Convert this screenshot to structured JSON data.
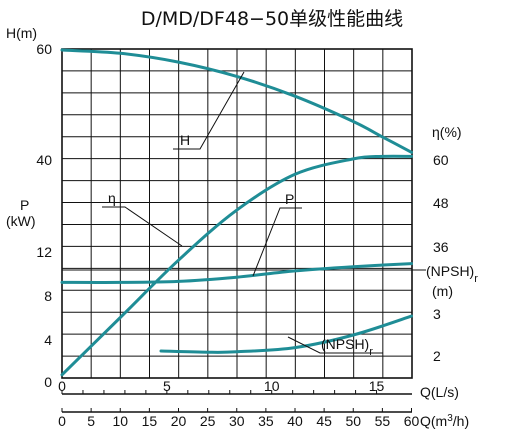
{
  "colors": {
    "curve": "#1f8d96",
    "grid": "#111111",
    "background": "#ffffff"
  },
  "chart_data": {
    "type": "line",
    "title": "D/MD/DF48−50单级性能曲线",
    "x_axis": {
      "label_ls": "Q(L/s)",
      "ticks_ls": [
        "0",
        "5",
        "10",
        "15"
      ],
      "label_m3h_prefix": "Q(m",
      "label_m3h_sup": "3",
      "label_m3h_suffix": "/h)",
      "ticks_m3h": [
        "0",
        "5",
        "10",
        "15",
        "20",
        "25",
        "30",
        "35",
        "40",
        "45",
        "50",
        "55",
        "60"
      ],
      "range_ls": [
        0,
        16.67
      ]
    },
    "left_axes": {
      "head": {
        "label": "H(m)",
        "ticks": [
          "60",
          "40"
        ]
      },
      "power": {
        "label_1": "P",
        "label_2": "(kW)",
        "ticks": [
          "12",
          "8",
          "4",
          "0"
        ]
      }
    },
    "right_axes": {
      "efficiency": {
        "label": "η(%)",
        "ticks": [
          "60",
          "48",
          "36"
        ]
      },
      "npsh": {
        "label_base": "(NPSH)",
        "label_sub": "r",
        "unit": "(m)",
        "ticks": [
          "3",
          "2"
        ]
      }
    },
    "grid": true,
    "curve_labels": {
      "H": "H",
      "eta": "η",
      "P": "P",
      "npsh_base": "(NPSH)",
      "npsh_sub": "r"
    },
    "series": [
      {
        "name": "H",
        "unit": "m",
        "x_m3h": [
          0,
          10,
          20,
          30,
          40,
          50,
          55,
          60
        ],
        "values": [
          60,
          59.4,
          57.8,
          55.2,
          51.6,
          47,
          44.2,
          41.4
        ]
      },
      {
        "name": "η",
        "unit": "%",
        "x_m3h": [
          0,
          10,
          20,
          30,
          40,
          50,
          55,
          60
        ],
        "values": [
          0,
          16,
          32,
          46,
          56,
          60.3,
          61,
          61
        ]
      },
      {
        "name": "P",
        "unit": "kW",
        "x_m3h": [
          0,
          10,
          20,
          30,
          40,
          50,
          60
        ],
        "values": [
          9.1,
          9.1,
          9.2,
          9.6,
          10.2,
          10.6,
          10.9
        ]
      },
      {
        "name": "(NPSH)r",
        "unit": "m",
        "x_m3h": [
          17,
          25,
          30,
          40,
          50,
          60
        ],
        "values": [
          2.12,
          2.09,
          2.1,
          2.2,
          2.5,
          2.95
        ]
      }
    ]
  }
}
